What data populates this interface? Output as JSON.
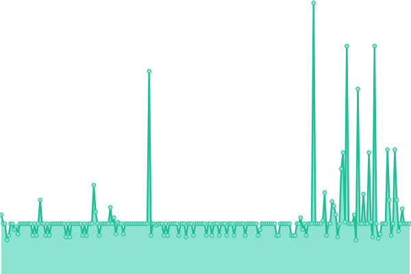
{
  "chart_data": {
    "type": "area",
    "title": "",
    "xlabel": "",
    "ylabel": "",
    "grid": false,
    "legend": "none",
    "ylim": [
      0,
      370
    ],
    "colors": {
      "line": "#1fbf9a",
      "fill": "#8ce3cf",
      "marker_fill": "#8ce3cf",
      "marker_stroke": "#1fbf9a"
    },
    "series": [
      {
        "name": "",
        "values": [
          80,
          68,
          68,
          46,
          52,
          68,
          68,
          60,
          64,
          54,
          68,
          68,
          68,
          68,
          68,
          68,
          68,
          52,
          68,
          52,
          68,
          100,
          68,
          68,
          52,
          68,
          52,
          68,
          68,
          68,
          68,
          68,
          68,
          68,
          68,
          50,
          68,
          50,
          68,
          68,
          68,
          68,
          68,
          68,
          52,
          68,
          52,
          68,
          68,
          68,
          120,
          84,
          68,
          52,
          68,
          68,
          68,
          68,
          68,
          90,
          68,
          76,
          54,
          70,
          68,
          68,
          54,
          68,
          68,
          68,
          68,
          68,
          68,
          68,
          68,
          68,
          68,
          68,
          68,
          68,
          274,
          52,
          68,
          68,
          66,
          68,
          68,
          68,
          52,
          68,
          52,
          68,
          68,
          68,
          68,
          68,
          52,
          68,
          68,
          68,
          50,
          68,
          68,
          68,
          52,
          68,
          68,
          68,
          68,
          68,
          68,
          52,
          68,
          68,
          52,
          68,
          68,
          68,
          52,
          68,
          68,
          68,
          52,
          68,
          68,
          68,
          52,
          68,
          68,
          68,
          68,
          68,
          52,
          68,
          68,
          68,
          68,
          68,
          68,
          52,
          60,
          68,
          68,
          68,
          68,
          68,
          68,
          68,
          68,
          52,
          52,
          68,
          68,
          68,
          68,
          68,
          68,
          52,
          52,
          52,
          68,
          68,
          76,
          60,
          68,
          52,
          68,
          68,
          68,
          366,
          68,
          68,
          68,
          68,
          72,
          110,
          52,
          68,
          68,
          98,
          92,
          80,
          50,
          68,
          142,
          164,
          70,
          308,
          68,
          68,
          68,
          80,
          46,
          250,
          68,
          68,
          108,
          68,
          68,
          164,
          70,
          50,
          308,
          68,
          48,
          54,
          68,
          68,
          68,
          168,
          100,
          52,
          68,
          168,
          100,
          58,
          68,
          88,
          68,
          68,
          68,
          68
        ]
      }
    ]
  }
}
